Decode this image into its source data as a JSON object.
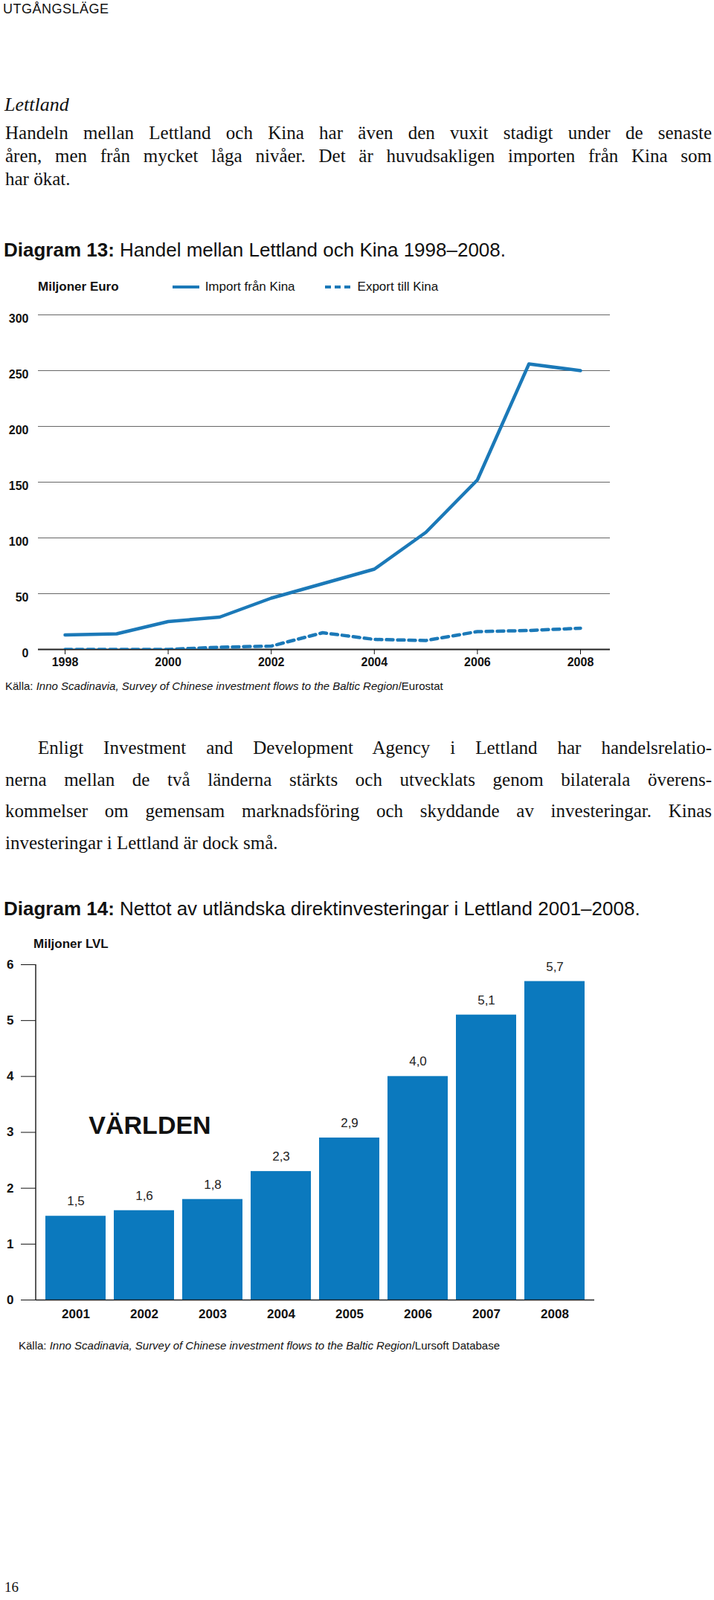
{
  "header": "UTGÅNGSLÄGE",
  "heading": "Lettland",
  "paragraphs": [
    [
      "Handeln mellan Lettland och Kina har även den vuxit stadigt under de senaste",
      "åren, men från mycket låga nivåer. Det är huvudsakligen importen från Kina som",
      "har ökat."
    ],
    [
      "Enligt Investment and Development Agency i Lettland har handelsrelatio-",
      "nerna mellan de två länderna stärkts och utvecklats genom bilaterala överens-",
      "kommelser om gemensam marknadsföring och skyddande av investeringar. Kinas",
      "investeringar i Lettland är dock små."
    ]
  ],
  "chart_data": [
    {
      "type": "line",
      "title": "Diagram 13: Handel mellan Lettland och Kina 1998–2008.",
      "y_label": "Miljoner Euro",
      "x": [
        1998,
        1999,
        2000,
        2001,
        2002,
        2003,
        2004,
        2005,
        2006,
        2007,
        2008
      ],
      "series": [
        {
          "name": "Import från Kina",
          "color": "#1b79b8",
          "line_style": "solid",
          "values": [
            13,
            14,
            25,
            29,
            46,
            59,
            72,
            105,
            152,
            256,
            250
          ]
        },
        {
          "name": "Export till Kina",
          "color": "#1b79b8",
          "line_style": "dashed",
          "values": [
            0,
            0,
            0,
            2,
            3,
            15,
            9,
            8,
            16,
            17,
            19
          ]
        }
      ],
      "xlim": [
        1998,
        2008
      ],
      "xticks": [
        1998,
        2000,
        2002,
        2004,
        2006,
        2008
      ],
      "ylim": [
        0,
        300
      ],
      "yticks": [
        0,
        50,
        100,
        150,
        200,
        250,
        300
      ],
      "grid": true,
      "legend": "top",
      "source": [
        "Källa: ",
        "Inno Scadinavia, Survey of Chinese investment flows to the Baltic Region",
        "/Eurostat"
      ]
    },
    {
      "type": "bar",
      "title": "Diagram 14: Nettot av utländska direktinvesteringar i Lettland 2001–2008.",
      "y_label": "Miljoner LVL",
      "annotation": "VÄRLDEN",
      "categories": [
        "2001",
        "2002",
        "2003",
        "2004",
        "2005",
        "2006",
        "2007",
        "2008"
      ],
      "values": [
        1.5,
        1.6,
        1.8,
        2.3,
        2.9,
        4.0,
        5.1,
        5.7
      ],
      "value_labels": [
        "1,5",
        "1,6",
        "1,8",
        "2,3",
        "2,9",
        "4,0",
        "5,1",
        "5,7"
      ],
      "color": "#0b79be",
      "ylim": [
        0,
        6
      ],
      "yticks": [
        0,
        1,
        2,
        3,
        4,
        5,
        6
      ],
      "data_labels": true,
      "source": [
        "Källa: ",
        "Inno Scadinavia, Survey of Chinese investment flows to the Baltic Region",
        "/Lursoft Database"
      ]
    }
  ],
  "page_number": "16"
}
